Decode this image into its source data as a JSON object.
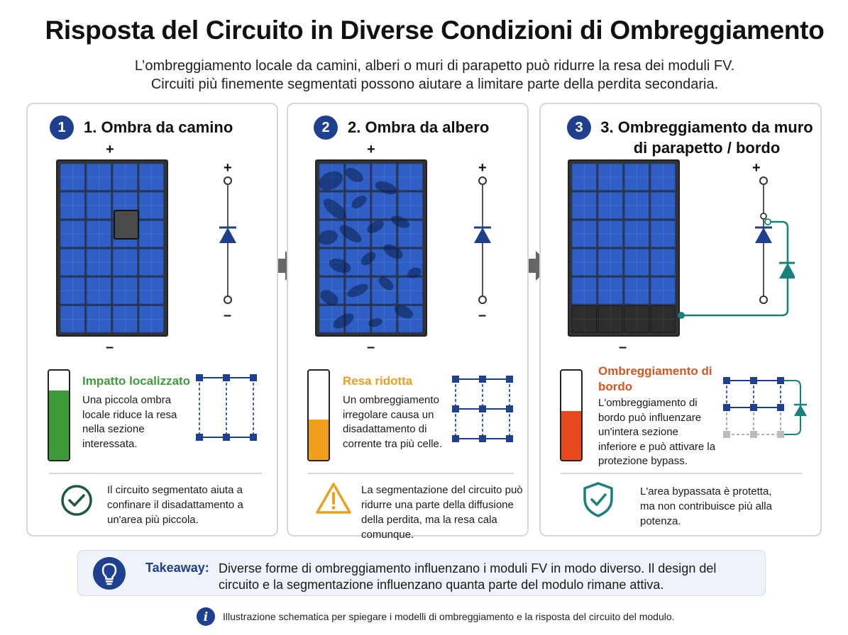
{
  "header": {
    "title": "Risposta del Circuito in Diverse Condizioni di Ombreggiamento",
    "subtitle_line1": "L’ombreggiamento locale da camini, alberi o muri di parapetto può ridurre la resa dei moduli FV.",
    "subtitle_line2": "Circuiti più finemente segmentati possono aiutare a limitare parte della perdita secondaria."
  },
  "panels": [
    {
      "number": "1",
      "title_line1": "1. Ombra da camino",
      "title_line2": "",
      "plus": "+",
      "minus": "–",
      "status_title": "Impatto localizzato",
      "status_body": "Una piccola ombra locale riduce la resa nella sezione interessata.",
      "gauge_level": 0.78,
      "gauge_color": "#3f9a3a",
      "status_color": "#3f9a3a",
      "note": "Il circuito segmentato aiuta a confinare il disadattamento a un'area più piccola.",
      "note_icon": "check-circle-icon"
    },
    {
      "number": "2",
      "title_line1": "2. Ombra da albero",
      "title_line2": "",
      "plus": "+",
      "minus": "–",
      "status_title": "Resa ridotta",
      "status_body": "Un ombreggiamento irregolare causa un disadattamento di corrente tra più celle.",
      "gauge_level": 0.45,
      "gauge_color": "#f2a01c",
      "status_color": "#e8a020",
      "note": "La segmentazione del circuito può ridurre una parte della diffusione della perdita, ma la resa cala comunque.",
      "note_icon": "warning-triangle-icon"
    },
    {
      "number": "3",
      "title_line1": "3. Ombreggiamento da muro",
      "title_line2": "di parapetto / bordo",
      "plus": "+",
      "minus": "–",
      "status_title": "Ombreggiamento di bordo",
      "status_body": "L'ombreggiamento di bordo può influenzare un'intera sezione inferiore e può attivare la protezione bypass.",
      "gauge_level": 0.55,
      "gauge_color": "#e6491f",
      "status_color": "#d9541f",
      "note": "L'area bypassata è protetta, ma non contribuisce più alla potenza.",
      "note_icon": "shield-check-icon"
    }
  ],
  "takeaway": {
    "label": "Takeaway:",
    "text": "Diverse forme di ombreggiamento influenzano i moduli FV in modo diverso. Il design del circuito e la segmentazione influenzano quanta parte del modulo rimane attiva.",
    "icon": "lightbulb-icon"
  },
  "footnote": {
    "icon": "info-icon",
    "text": "Illustrazione schematica per spiegare i modelli di ombreggiamento e la risposta del circuito del modulo."
  },
  "colors": {
    "navy": "#1f3f8f",
    "cell_blue": "#2f5fc4",
    "teal": "#17827a",
    "arrow_gray": "#666666"
  }
}
